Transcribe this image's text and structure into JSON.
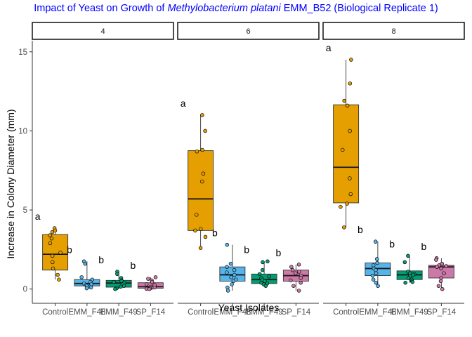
{
  "chart_data": {
    "type": "box",
    "title": {
      "prefix": "Impact of Yeast on Growth of ",
      "species": "Methylobacterium platani",
      "suffix": " EMM_B52 (Biological Replicate 1)"
    },
    "xlabel": "Yeast Isolates",
    "ylabel": "Increase in Colony Diameter (mm)",
    "ylim": [
      -0.9,
      15.7
    ],
    "yticks": [
      0,
      5,
      10,
      15
    ],
    "categories": [
      "Control",
      "EMM_F48",
      "EMM_F49",
      "SP_F14"
    ],
    "colors": {
      "Control": "#e69f00",
      "EMM_F48": "#56b4e9",
      "EMM_F49": "#009e73",
      "SP_F14": "#cc79a7"
    },
    "panels": [
      {
        "label": "4",
        "groups": [
          {
            "name": "Control",
            "q1": 1.2,
            "median": 2.2,
            "q3": 3.45,
            "whisker_low": 0.6,
            "whisker_high": 3.85,
            "letter": "a",
            "points": [
              3.85,
              3.7,
              3.6,
              3.4,
              3.2,
              2.9,
              2.3,
              2.1,
              1.7,
              1.3,
              0.9,
              0.6
            ]
          },
          {
            "name": "EMM_F48",
            "q1": 0.2,
            "median": 0.35,
            "q3": 0.6,
            "whisker_low": 0.05,
            "whisker_high": 1.75,
            "letter": "b",
            "points": [
              1.75,
              1.6,
              0.75,
              0.6,
              0.45,
              0.35,
              0.3,
              0.25,
              0.2,
              0.15,
              0.1,
              0.05
            ]
          },
          {
            "name": "EMM_F49",
            "q1": 0.12,
            "median": 0.38,
            "q3": 0.55,
            "whisker_low": 0.0,
            "whisker_high": 1.1,
            "letter": "b",
            "points": [
              1.1,
              0.95,
              0.7,
              0.55,
              0.5,
              0.45,
              0.4,
              0.3,
              0.2,
              0.15,
              0.05,
              0.0
            ]
          },
          {
            "name": "SP_F14",
            "q1": 0.05,
            "median": 0.15,
            "q3": 0.4,
            "whisker_low": 0.0,
            "whisker_high": 0.75,
            "letter": "b",
            "points": [
              0.75,
              0.65,
              0.55,
              0.45,
              0.3,
              0.25,
              0.15,
              0.1,
              0.08,
              0.05,
              0.02,
              0.0
            ]
          }
        ]
      },
      {
        "label": "6",
        "groups": [
          {
            "name": "Control",
            "q1": 3.7,
            "median": 5.7,
            "q3": 8.75,
            "whisker_low": 2.6,
            "whisker_high": 11.0,
            "letter": "a",
            "points": [
              11.0,
              10.0,
              8.8,
              8.7,
              7.3,
              6.8,
              4.7,
              3.8,
              3.7,
              3.3,
              2.6
            ]
          },
          {
            "name": "EMM_F48",
            "q1": 0.5,
            "median": 0.9,
            "q3": 1.4,
            "whisker_low": -0.1,
            "whisker_high": 2.8,
            "letter": "b",
            "points": [
              2.8,
              1.6,
              1.4,
              1.2,
              1.05,
              0.9,
              0.75,
              0.6,
              0.5,
              0.3,
              0.1,
              -0.1
            ]
          },
          {
            "name": "EMM_F49",
            "q1": 0.35,
            "median": 0.6,
            "q3": 0.95,
            "whisker_low": 0.2,
            "whisker_high": 1.75,
            "letter": "b",
            "points": [
              1.75,
              1.7,
              1.2,
              0.95,
              0.8,
              0.7,
              0.6,
              0.5,
              0.4,
              0.35,
              0.3,
              0.2
            ]
          },
          {
            "name": "SP_F14",
            "q1": 0.5,
            "median": 0.85,
            "q3": 1.2,
            "whisker_low": -0.1,
            "whisker_high": 1.55,
            "letter": "b",
            "points": [
              1.55,
              1.4,
              1.2,
              1.1,
              1.0,
              0.85,
              0.7,
              0.55,
              0.4,
              0.2,
              -0.1
            ]
          }
        ]
      },
      {
        "label": "8",
        "groups": [
          {
            "name": "Control",
            "q1": 5.45,
            "median": 7.7,
            "q3": 11.65,
            "whisker_low": 3.9,
            "whisker_high": 14.5,
            "letter": "a",
            "points": [
              14.5,
              13.0,
              11.9,
              11.6,
              10.0,
              8.8,
              7.0,
              6.0,
              5.4,
              5.2,
              3.9
            ]
          },
          {
            "name": "EMM_F48",
            "q1": 0.85,
            "median": 1.3,
            "q3": 1.65,
            "whisker_low": 0.2,
            "whisker_high": 3.0,
            "letter": "b",
            "points": [
              3.0,
              1.9,
              1.65,
              1.5,
              1.3,
              1.2,
              1.0,
              0.85,
              0.6,
              0.4,
              0.2
            ]
          },
          {
            "name": "EMM_F49",
            "q1": 0.6,
            "median": 0.9,
            "q3": 1.15,
            "whisker_low": 0.4,
            "whisker_high": 2.1,
            "letter": "b",
            "points": [
              2.1,
              1.7,
              1.1,
              1.0,
              0.95,
              0.9,
              0.8,
              0.7,
              0.6,
              0.5,
              0.45,
              0.4
            ]
          },
          {
            "name": "SP_F14",
            "q1": 0.7,
            "median": 1.4,
            "q3": 1.5,
            "whisker_low": 0.0,
            "whisker_high": 1.95,
            "letter": "b",
            "points": [
              1.95,
              1.85,
              1.6,
              1.5,
              1.45,
              1.4,
              1.3,
              1.0,
              0.7,
              0.5,
              0.2,
              0.0
            ]
          }
        ]
      }
    ]
  }
}
